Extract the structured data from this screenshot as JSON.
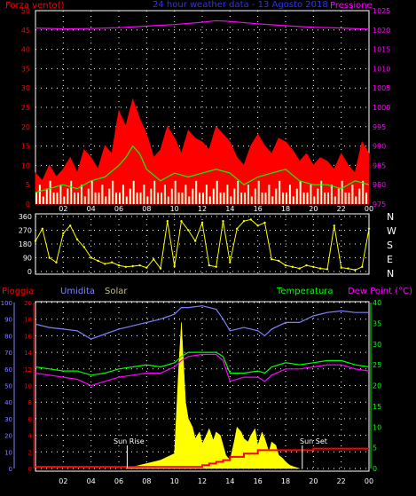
{
  "chart_data": [
    {
      "type": "line",
      "title": "24 hour weather data - 13 Agosto 2018",
      "left_label": "Forza vento()",
      "right_label": "Pressione",
      "x_ticks": [
        "02",
        "04",
        "06",
        "08",
        "10",
        "12",
        "14",
        "16",
        "18",
        "20",
        "22",
        "00"
      ],
      "y_left_ticks": [
        "0",
        "5",
        "10",
        "15",
        "20",
        "25",
        "30",
        "35",
        "40",
        "45",
        "50"
      ],
      "y_left_range": [
        0,
        50
      ],
      "y_right_ticks": [
        "975",
        "980",
        "985",
        "990",
        "995",
        "1000",
        "1005",
        "1010",
        "1015",
        "1020",
        "1025"
      ],
      "y_right_range": [
        975,
        1025
      ],
      "grid": true,
      "colors": {
        "gust": "#ff0000",
        "avg": "#00ff00",
        "direction_bars": "#d8ffd8",
        "pressure": "#ff00ff"
      },
      "series": {
        "pressure_x": [
          0,
          2,
          4,
          6,
          8,
          10,
          12,
          13,
          14,
          16,
          18,
          20,
          22,
          24
        ],
        "pressure_y": [
          1020.5,
          1020.3,
          1020.4,
          1020.6,
          1021,
          1021.4,
          1022,
          1022.4,
          1022.2,
          1021.6,
          1021.1,
          1020.7,
          1020.5,
          1020.2
        ],
        "gust_x": [
          0,
          0.5,
          1,
          1.5,
          2,
          2.5,
          3,
          3.5,
          4,
          4.5,
          5,
          5.5,
          6,
          6.5,
          7,
          7.5,
          8,
          8.5,
          9,
          9.5,
          10,
          10.5,
          11,
          11.5,
          12,
          12.5,
          13,
          13.5,
          14,
          14.5,
          15,
          15.5,
          16,
          16.5,
          17,
          17.5,
          18,
          18.5,
          19,
          19.5,
          20,
          20.5,
          21,
          21.5,
          22,
          22.5,
          23,
          23.5,
          24
        ],
        "gust_y": [
          8,
          6,
          10,
          7,
          9,
          12,
          8,
          14,
          12,
          9,
          15,
          13,
          24,
          20,
          27,
          22,
          18,
          12,
          14,
          20,
          17,
          13,
          19,
          17,
          16,
          14,
          20,
          18,
          16,
          12,
          10,
          15,
          18,
          15,
          13,
          17,
          16,
          14,
          11,
          13,
          10,
          12,
          11,
          9,
          13,
          10,
          8,
          16,
          13
        ],
        "avg_x": [
          0,
          1,
          2,
          3,
          4,
          5,
          6,
          6.5,
          7,
          7.5,
          8,
          9,
          10,
          11,
          12,
          13,
          14,
          15,
          16,
          17,
          18,
          19,
          20,
          21,
          22,
          23,
          24
        ],
        "avg_y": [
          3,
          4,
          5,
          4,
          6,
          7,
          10,
          12,
          15,
          13,
          9,
          6,
          8,
          7,
          8,
          9,
          8,
          5,
          7,
          8,
          9,
          6,
          5,
          5,
          4,
          6,
          5
        ]
      }
    },
    {
      "type": "scatter",
      "y_ticks": [
        "360",
        "270",
        "180",
        "90",
        "0"
      ],
      "y_range": [
        0,
        360
      ],
      "compass_labels": [
        "N",
        "W",
        "S",
        "E",
        "N"
      ],
      "x_ticks": [
        "02",
        "04",
        "06",
        "08",
        "10",
        "12",
        "14",
        "16",
        "18",
        "20",
        "22",
        "00"
      ],
      "grid": true,
      "color": "#ffff00",
      "x": [
        0,
        0.5,
        1,
        1.5,
        2,
        2.5,
        3,
        3.5,
        4,
        4.5,
        5,
        5.5,
        6,
        6.5,
        7,
        7.5,
        8,
        8.5,
        9,
        9.5,
        10,
        10.5,
        11,
        11.5,
        12,
        12.5,
        13,
        13.5,
        14,
        14.5,
        15,
        15.5,
        16,
        16.5,
        17,
        17.5,
        18,
        18.5,
        19,
        19.5,
        20,
        20.5,
        21,
        21.5,
        22,
        22.5,
        23,
        23.5,
        24
      ],
      "y": [
        200,
        280,
        90,
        60,
        250,
        300,
        210,
        160,
        90,
        70,
        50,
        60,
        40,
        30,
        35,
        40,
        25,
        80,
        20,
        330,
        35,
        330,
        270,
        200,
        320,
        40,
        30,
        330,
        60,
        280,
        330,
        340,
        300,
        320,
        80,
        70,
        40,
        30,
        20,
        40,
        30,
        20,
        15,
        300,
        25,
        20,
        10,
        30,
        280
      ]
    },
    {
      "type": "line",
      "legend": [
        "Pioggia",
        "Umidita",
        "Solar",
        "Temperatura",
        "Dew Point (°C)"
      ],
      "colors": {
        "rain": "#ff0000",
        "humidity": "#8080ff",
        "solar": "#ffff00",
        "temperature": "#00ff00",
        "dew": "#ff00ff"
      },
      "y_left_rain_ticks": [
        "0",
        "2",
        "4",
        "6",
        "8",
        "10",
        "12",
        "14",
        "16",
        "18",
        "20"
      ],
      "y_left_hum_ticks": [
        "0",
        "10",
        "20",
        "30",
        "40",
        "50",
        "60",
        "70",
        "80",
        "90",
        "100"
      ],
      "y_right_ticks": [
        "0",
        "5",
        "10",
        "15",
        "20",
        "25",
        "30",
        "35",
        "40"
      ],
      "x_ticks": [
        "02",
        "04",
        "06",
        "08",
        "10",
        "12",
        "14",
        "16",
        "18",
        "20",
        "22",
        "00"
      ],
      "grid": true,
      "annotations": {
        "sunrise": "Sun Rise",
        "sunset": "Sun Set"
      },
      "series": {
        "x": [
          0,
          1,
          2,
          3,
          4,
          5,
          6,
          7,
          8,
          9,
          10,
          10.5,
          11,
          12,
          13,
          13.5,
          14,
          15,
          16,
          16.5,
          17,
          18,
          19,
          20,
          21,
          22,
          23,
          24
        ],
        "humidity": [
          87,
          85,
          84,
          83,
          78,
          81,
          84,
          86,
          88,
          90,
          93,
          97,
          97,
          98,
          96,
          90,
          83,
          85,
          83,
          80,
          84,
          88,
          88,
          92,
          94,
          95,
          94,
          94
        ],
        "temperature_c": [
          24.5,
          24,
          23.5,
          23.5,
          22.5,
          23,
          24,
          24.5,
          25,
          24.5,
          25.5,
          27,
          28,
          28,
          28,
          27,
          23,
          23,
          23.5,
          23,
          24.5,
          25.5,
          25,
          25.5,
          26,
          26,
          25,
          24.5
        ],
        "dew_point_c": [
          23,
          22.5,
          22,
          21.5,
          20,
          21,
          22,
          22.5,
          23,
          23,
          24.5,
          26,
          27,
          27.5,
          27.5,
          26,
          21,
          22,
          22,
          21,
          22.5,
          24,
          24,
          24.5,
          25,
          25,
          24,
          23.5
        ],
        "solar_x": [
          6.5,
          7,
          7.5,
          8,
          8.5,
          9,
          9.5,
          10,
          10.3,
          10.5,
          10.8,
          11,
          11.3,
          11.5,
          11.8,
          12,
          12.3,
          12.5,
          12.8,
          13,
          13.3,
          13.5,
          13.7,
          14,
          14.3,
          14.5,
          14.8,
          15,
          15.3,
          15.5,
          15.8,
          16,
          16.3,
          16.5,
          16.8,
          17,
          17.3,
          17.5,
          17.8,
          18,
          18.3,
          18.6,
          19
        ],
        "solar_pct": [
          0,
          1,
          2,
          3,
          4,
          5,
          7,
          9,
          60,
          88,
          40,
          30,
          25,
          18,
          22,
          15,
          20,
          24,
          17,
          22,
          20,
          14,
          8,
          5,
          16,
          25,
          22,
          18,
          16,
          20,
          24,
          14,
          22,
          18,
          10,
          16,
          14,
          8,
          6,
          4,
          2,
          1,
          0
        ],
        "rain_x": [
          0,
          12,
          12.5,
          13,
          13.5,
          14,
          15,
          16,
          17,
          18,
          19,
          20,
          21,
          22,
          23,
          24
        ],
        "rain_mm": [
          0.2,
          0.4,
          0.6,
          0.8,
          1,
          1.4,
          1.8,
          2.2,
          2.2,
          2.2,
          2.2,
          2.4,
          2.4,
          2.4,
          2.4,
          2.4
        ]
      }
    }
  ]
}
